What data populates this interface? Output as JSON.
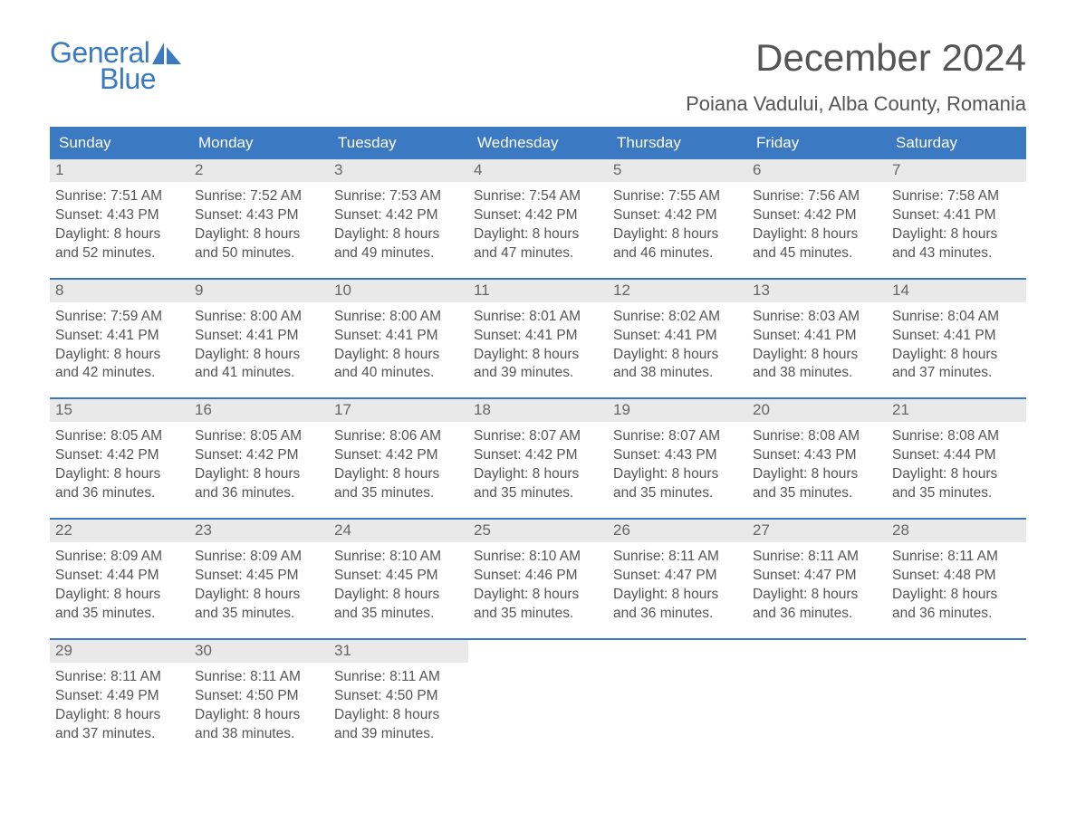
{
  "logo": {
    "word1": "General",
    "word2": "Blue",
    "brand_color": "#3b7ac2"
  },
  "title": "December 2024",
  "location": "Poiana Vadului, Alba County, Romania",
  "days_of_week": [
    "Sunday",
    "Monday",
    "Tuesday",
    "Wednesday",
    "Thursday",
    "Friday",
    "Saturday"
  ],
  "colors": {
    "header_bg": "#3b7ac2",
    "header_text": "#ffffff",
    "daynum_bg": "#e9e9e9",
    "body_text": "#555555",
    "week_border": "#3b7ac2",
    "page_bg": "#ffffff"
  },
  "weeks": [
    [
      {
        "date": 1,
        "sunrise": "7:51 AM",
        "sunset": "4:43 PM",
        "daylight_hours": 8,
        "daylight_minutes": 52
      },
      {
        "date": 2,
        "sunrise": "7:52 AM",
        "sunset": "4:43 PM",
        "daylight_hours": 8,
        "daylight_minutes": 50
      },
      {
        "date": 3,
        "sunrise": "7:53 AM",
        "sunset": "4:42 PM",
        "daylight_hours": 8,
        "daylight_minutes": 49
      },
      {
        "date": 4,
        "sunrise": "7:54 AM",
        "sunset": "4:42 PM",
        "daylight_hours": 8,
        "daylight_minutes": 47
      },
      {
        "date": 5,
        "sunrise": "7:55 AM",
        "sunset": "4:42 PM",
        "daylight_hours": 8,
        "daylight_minutes": 46
      },
      {
        "date": 6,
        "sunrise": "7:56 AM",
        "sunset": "4:42 PM",
        "daylight_hours": 8,
        "daylight_minutes": 45
      },
      {
        "date": 7,
        "sunrise": "7:58 AM",
        "sunset": "4:41 PM",
        "daylight_hours": 8,
        "daylight_minutes": 43
      }
    ],
    [
      {
        "date": 8,
        "sunrise": "7:59 AM",
        "sunset": "4:41 PM",
        "daylight_hours": 8,
        "daylight_minutes": 42
      },
      {
        "date": 9,
        "sunrise": "8:00 AM",
        "sunset": "4:41 PM",
        "daylight_hours": 8,
        "daylight_minutes": 41
      },
      {
        "date": 10,
        "sunrise": "8:00 AM",
        "sunset": "4:41 PM",
        "daylight_hours": 8,
        "daylight_minutes": 40
      },
      {
        "date": 11,
        "sunrise": "8:01 AM",
        "sunset": "4:41 PM",
        "daylight_hours": 8,
        "daylight_minutes": 39
      },
      {
        "date": 12,
        "sunrise": "8:02 AM",
        "sunset": "4:41 PM",
        "daylight_hours": 8,
        "daylight_minutes": 38
      },
      {
        "date": 13,
        "sunrise": "8:03 AM",
        "sunset": "4:41 PM",
        "daylight_hours": 8,
        "daylight_minutes": 38
      },
      {
        "date": 14,
        "sunrise": "8:04 AM",
        "sunset": "4:41 PM",
        "daylight_hours": 8,
        "daylight_minutes": 37
      }
    ],
    [
      {
        "date": 15,
        "sunrise": "8:05 AM",
        "sunset": "4:42 PM",
        "daylight_hours": 8,
        "daylight_minutes": 36
      },
      {
        "date": 16,
        "sunrise": "8:05 AM",
        "sunset": "4:42 PM",
        "daylight_hours": 8,
        "daylight_minutes": 36
      },
      {
        "date": 17,
        "sunrise": "8:06 AM",
        "sunset": "4:42 PM",
        "daylight_hours": 8,
        "daylight_minutes": 35
      },
      {
        "date": 18,
        "sunrise": "8:07 AM",
        "sunset": "4:42 PM",
        "daylight_hours": 8,
        "daylight_minutes": 35
      },
      {
        "date": 19,
        "sunrise": "8:07 AM",
        "sunset": "4:43 PM",
        "daylight_hours": 8,
        "daylight_minutes": 35
      },
      {
        "date": 20,
        "sunrise": "8:08 AM",
        "sunset": "4:43 PM",
        "daylight_hours": 8,
        "daylight_minutes": 35
      },
      {
        "date": 21,
        "sunrise": "8:08 AM",
        "sunset": "4:44 PM",
        "daylight_hours": 8,
        "daylight_minutes": 35
      }
    ],
    [
      {
        "date": 22,
        "sunrise": "8:09 AM",
        "sunset": "4:44 PM",
        "daylight_hours": 8,
        "daylight_minutes": 35
      },
      {
        "date": 23,
        "sunrise": "8:09 AM",
        "sunset": "4:45 PM",
        "daylight_hours": 8,
        "daylight_minutes": 35
      },
      {
        "date": 24,
        "sunrise": "8:10 AM",
        "sunset": "4:45 PM",
        "daylight_hours": 8,
        "daylight_minutes": 35
      },
      {
        "date": 25,
        "sunrise": "8:10 AM",
        "sunset": "4:46 PM",
        "daylight_hours": 8,
        "daylight_minutes": 35
      },
      {
        "date": 26,
        "sunrise": "8:11 AM",
        "sunset": "4:47 PM",
        "daylight_hours": 8,
        "daylight_minutes": 36
      },
      {
        "date": 27,
        "sunrise": "8:11 AM",
        "sunset": "4:47 PM",
        "daylight_hours": 8,
        "daylight_minutes": 36
      },
      {
        "date": 28,
        "sunrise": "8:11 AM",
        "sunset": "4:48 PM",
        "daylight_hours": 8,
        "daylight_minutes": 36
      }
    ],
    [
      {
        "date": 29,
        "sunrise": "8:11 AM",
        "sunset": "4:49 PM",
        "daylight_hours": 8,
        "daylight_minutes": 37
      },
      {
        "date": 30,
        "sunrise": "8:11 AM",
        "sunset": "4:50 PM",
        "daylight_hours": 8,
        "daylight_minutes": 38
      },
      {
        "date": 31,
        "sunrise": "8:11 AM",
        "sunset": "4:50 PM",
        "daylight_hours": 8,
        "daylight_minutes": 39
      },
      null,
      null,
      null,
      null
    ]
  ],
  "labels": {
    "sunrise": "Sunrise:",
    "sunset": "Sunset:",
    "daylight_prefix": "Daylight:",
    "hours_word": "hours",
    "and_word": "and",
    "minutes_word": "minutes."
  }
}
